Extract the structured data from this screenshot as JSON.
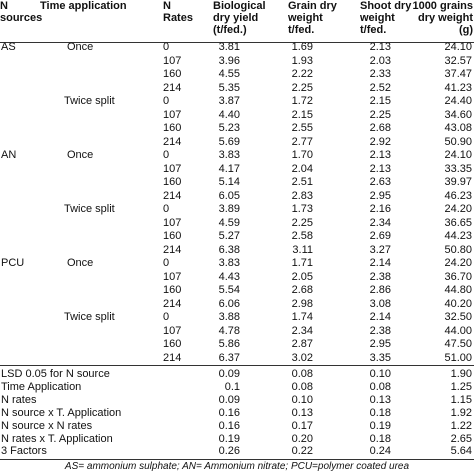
{
  "header": [
    "N sources",
    "Time application",
    "N Rates",
    "Biological dry yield (t/fed.)",
    "Grain dry weight t/fed.",
    "Shoot dry weight t/fed.",
    "1000 grains dry weight (g)"
  ],
  "sources": [
    {
      "name": "AS",
      "times": [
        {
          "name": "Once",
          "rows": [
            [
              "0",
              "3.81",
              "1.69",
              "2.13",
              "24.10"
            ],
            [
              "107",
              "3.96",
              "1.93",
              "2.03",
              "32.57"
            ],
            [
              "160",
              "4.55",
              "2.22",
              "2.33",
              "37.47"
            ],
            [
              "214",
              "5.35",
              "2.25",
              "2.52",
              "41.23"
            ]
          ]
        },
        {
          "name": "Twice split",
          "rows": [
            [
              "0",
              "3.87",
              "1.72",
              "2.15",
              "24.40"
            ],
            [
              "107",
              "4.40",
              "2.15",
              "2.25",
              "34.60"
            ],
            [
              "160",
              "5.23",
              "2.55",
              "2.68",
              "43.08"
            ],
            [
              "214",
              "5.69",
              "2.77",
              "2.92",
              "50.90"
            ]
          ]
        }
      ]
    },
    {
      "name": "AN",
      "times": [
        {
          "name": "Once",
          "rows": [
            [
              "0",
              "3.83",
              "1.70",
              "2.13",
              "24.10"
            ],
            [
              "107",
              "4.17",
              "2.04",
              "2.13",
              "33.35"
            ],
            [
              "160",
              "5.14",
              "2.51",
              "2.63",
              "39.97"
            ],
            [
              "214",
              "6.05",
              "2.83",
              "2.95",
              "46.23"
            ]
          ]
        },
        {
          "name": "Twice split",
          "rows": [
            [
              "0",
              "3.89",
              "1.73",
              "2.16",
              "24.20"
            ],
            [
              "107",
              "4.59",
              "2.25",
              "2.34",
              "36.65"
            ],
            [
              "160",
              "5.27",
              "2.58",
              "2.69",
              "44.23"
            ],
            [
              "214",
              "6.38",
              "3.11",
              "3.27",
              "50.80"
            ]
          ]
        }
      ]
    },
    {
      "name": "PCU",
      "times": [
        {
          "name": "Once",
          "rows": [
            [
              "0",
              "3.83",
              "1.71",
              "2.14",
              "24.20"
            ],
            [
              "107",
              "4.43",
              "2.05",
              "2.38",
              "36.70"
            ],
            [
              "160",
              "5.54",
              "2.68",
              "2.86",
              "44.80"
            ],
            [
              "214",
              "6.06",
              "2.98",
              "3.08",
              "40.20"
            ]
          ]
        },
        {
          "name": "Twice split",
          "rows": [
            [
              "0",
              "3.88",
              "1.74",
              "2.14",
              "32.50"
            ],
            [
              "107",
              "4.78",
              "2.34",
              "2.38",
              "44.00"
            ],
            [
              "160",
              "5.86",
              "2.87",
              "2.95",
              "47.50"
            ],
            [
              "214",
              "6.37",
              "3.02",
              "3.35",
              "51.00"
            ]
          ]
        }
      ]
    }
  ],
  "lsd": [
    [
      "LSD 0.05 for N source",
      "0.09",
      "0.08",
      "0.10",
      "1.90"
    ],
    [
      "Time Application",
      "0.1",
      "0.08",
      "0.08",
      "1.25"
    ],
    [
      "N rates",
      "0.09",
      "0.10",
      "0.13",
      "1.15"
    ],
    [
      "N source x T. Application",
      "0.16",
      "0.13",
      "0.18",
      "1.92"
    ],
    [
      "N source x N rates",
      "0.16",
      "0.17",
      "0.19",
      "1.22"
    ],
    [
      "N rates x T. Application",
      "0.19",
      "0.20",
      "0.18",
      "2.65"
    ],
    [
      "3 Factors",
      "0.26",
      "0.22",
      "0.24",
      "5.64"
    ]
  ],
  "footnote": "AS= ammonium sulphate; AN= Ammonium nitrate; PCU=polymer coated urea"
}
